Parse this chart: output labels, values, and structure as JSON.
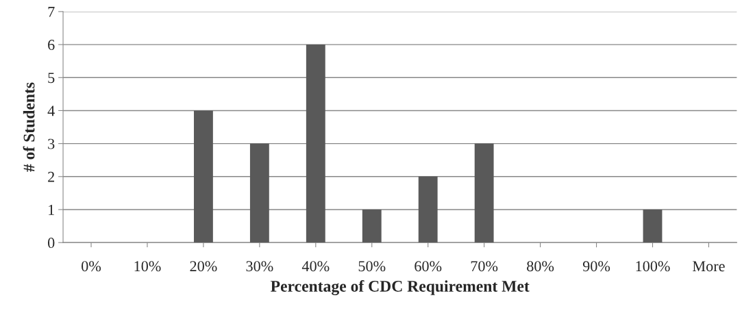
{
  "chart_data": {
    "type": "bar",
    "xlabel": "Percentage of CDC Requirement Met",
    "ylabel": "# of Students",
    "categories": [
      "0%",
      "10%",
      "20%",
      "30%",
      "40%",
      "50%",
      "60%",
      "70%",
      "80%",
      "90%",
      "100%",
      "More"
    ],
    "values": [
      0,
      0,
      4,
      3,
      6,
      1,
      2,
      3,
      0,
      0,
      1,
      0
    ],
    "color": "#595959",
    "ylim": [
      0,
      7
    ],
    "yticks": [
      0,
      1,
      2,
      3,
      4,
      5,
      6,
      7
    ],
    "grid": "y",
    "legend": false
  }
}
